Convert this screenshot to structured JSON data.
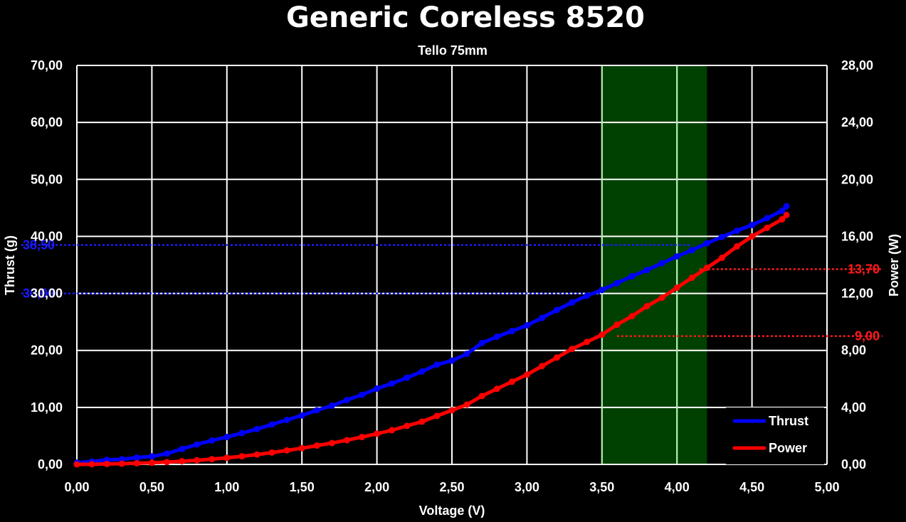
{
  "chart_data": {
    "type": "line",
    "title": "Generic Coreless 8520",
    "subtitle": "Tello 75mm",
    "xlabel": "Voltage (V)",
    "ylabel_left": "Thrust (g)",
    "ylabel_right": "Power (W)",
    "xlim": [
      0,
      5
    ],
    "ylim_left": [
      0,
      70
    ],
    "ylim_right": [
      0,
      28
    ],
    "x_ticks": [
      "0,00",
      "0,50",
      "1,00",
      "1,50",
      "2,00",
      "2,50",
      "3,00",
      "3,50",
      "4,00",
      "4,50",
      "5,00"
    ],
    "y_left_ticks": [
      "0,00",
      "10,00",
      "20,00",
      "30,00",
      "40,00",
      "50,00",
      "60,00",
      "70,00"
    ],
    "y_right_ticks": [
      "0,00",
      "4,00",
      "8,00",
      "12,00",
      "16,00",
      "20,00",
      "24,00",
      "28,00"
    ],
    "grid": true,
    "legend_position": "bottom-right",
    "highlight_band": {
      "x_from": 3.5,
      "x_to": 4.2,
      "color": "#004000"
    },
    "reference_lines": [
      {
        "axis": "left",
        "value": 38.5,
        "label": "38,50",
        "color": "#1a1aff"
      },
      {
        "axis": "left",
        "value": 30.0,
        "label": "30,00",
        "color": "#1a1aff"
      },
      {
        "axis": "right",
        "value": 13.7,
        "label": "13,70",
        "color": "#ff1a1a"
      },
      {
        "axis": "right",
        "value": 9.0,
        "label": "9,00",
        "color": "#ff1a1a"
      }
    ],
    "series": [
      {
        "name": "Thrust",
        "axis": "left",
        "color": "#0000ff",
        "x": [
          0.0,
          0.1,
          0.2,
          0.3,
          0.4,
          0.5,
          0.6,
          0.7,
          0.8,
          0.9,
          1.0,
          1.1,
          1.2,
          1.3,
          1.4,
          1.5,
          1.6,
          1.7,
          1.8,
          1.9,
          2.0,
          2.1,
          2.2,
          2.3,
          2.4,
          2.5,
          2.6,
          2.7,
          2.8,
          2.9,
          3.0,
          3.1,
          3.2,
          3.3,
          3.4,
          3.5,
          3.6,
          3.7,
          3.8,
          3.9,
          4.0,
          4.1,
          4.2,
          4.3,
          4.4,
          4.5,
          4.6,
          4.7,
          4.73
        ],
        "values": [
          0.3,
          0.5,
          0.8,
          0.9,
          1.2,
          1.4,
          1.9,
          2.7,
          3.5,
          4.2,
          4.8,
          5.5,
          6.2,
          7.0,
          7.8,
          8.6,
          9.5,
          10.3,
          11.3,
          12.2,
          13.3,
          14.2,
          15.2,
          16.3,
          17.5,
          18.2,
          19.4,
          21.3,
          22.4,
          23.4,
          24.4,
          25.7,
          27.1,
          28.4,
          29.6,
          30.6,
          31.8,
          33.0,
          34.1,
          35.3,
          36.5,
          37.6,
          38.8,
          39.9,
          41.0,
          42.0,
          43.2,
          44.5,
          45.3
        ]
      },
      {
        "name": "Power",
        "axis": "right",
        "color": "#ff0000",
        "x": [
          0.0,
          0.1,
          0.2,
          0.3,
          0.4,
          0.5,
          0.6,
          0.7,
          0.8,
          0.9,
          1.0,
          1.1,
          1.2,
          1.3,
          1.4,
          1.5,
          1.6,
          1.7,
          1.8,
          1.9,
          2.0,
          2.1,
          2.2,
          2.3,
          2.4,
          2.5,
          2.6,
          2.7,
          2.8,
          2.9,
          3.0,
          3.1,
          3.2,
          3.3,
          3.4,
          3.5,
          3.6,
          3.7,
          3.8,
          3.9,
          4.0,
          4.1,
          4.2,
          4.3,
          4.4,
          4.5,
          4.6,
          4.7,
          4.73
        ],
        "values": [
          0.0,
          0.01,
          0.03,
          0.05,
          0.08,
          0.11,
          0.16,
          0.22,
          0.29,
          0.37,
          0.46,
          0.57,
          0.69,
          0.83,
          0.98,
          1.14,
          1.32,
          1.5,
          1.7,
          1.92,
          2.15,
          2.4,
          2.7,
          3.0,
          3.4,
          3.8,
          4.2,
          4.8,
          5.3,
          5.8,
          6.3,
          6.9,
          7.5,
          8.1,
          8.6,
          9.1,
          9.8,
          10.4,
          11.1,
          11.7,
          12.4,
          13.1,
          13.8,
          14.5,
          15.3,
          16.0,
          16.6,
          17.2,
          17.5
        ]
      }
    ]
  }
}
